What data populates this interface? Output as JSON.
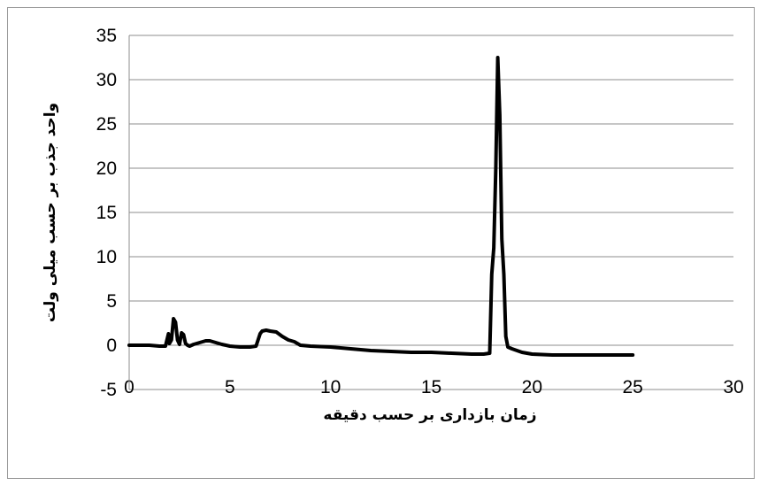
{
  "chart_data": {
    "type": "line",
    "title": "",
    "xlabel": "زمان بازداری بر حسب دقیقه",
    "ylabel": "واحد جذب بر حسب میلی ولت",
    "xlim": [
      0,
      30
    ],
    "ylim": [
      -5,
      35
    ],
    "x_ticks": [
      "0",
      "5",
      "10",
      "15",
      "20",
      "25",
      "30"
    ],
    "y_ticks": [
      "-5",
      "0",
      "5",
      "10",
      "15",
      "20",
      "25",
      "30",
      "35"
    ],
    "grid": "horizontal",
    "legend": "none",
    "series": [
      {
        "color": "#000000",
        "x": [
          0,
          0.5,
          1,
          1.5,
          1.8,
          1.95,
          2.0,
          2.1,
          2.2,
          2.3,
          2.4,
          2.5,
          2.6,
          2.7,
          2.8,
          2.9,
          3.0,
          3.2,
          3.5,
          3.8,
          4.0,
          4.3,
          4.6,
          5.0,
          5.5,
          6.0,
          6.3,
          6.5,
          6.6,
          6.8,
          7.0,
          7.3,
          7.6,
          7.9,
          8.2,
          8.5,
          9.0,
          10.0,
          11.0,
          12.0,
          13.0,
          14.0,
          15.0,
          16.0,
          17.0,
          17.6,
          17.9,
          18.0,
          18.1,
          18.2,
          18.3,
          18.4,
          18.5,
          18.6,
          18.7,
          18.8,
          18.9,
          19.0,
          19.5,
          20.0,
          21.0,
          22.0,
          23.0,
          24.0,
          25.0
        ],
        "y": [
          0,
          0,
          0,
          -0.1,
          -0.1,
          1.3,
          0.2,
          0.6,
          3.0,
          2.6,
          0.6,
          0.1,
          1.4,
          1.2,
          0.2,
          0.0,
          -0.1,
          0.1,
          0.3,
          0.5,
          0.5,
          0.3,
          0.1,
          -0.1,
          -0.2,
          -0.2,
          -0.1,
          1.3,
          1.6,
          1.7,
          1.6,
          1.5,
          1.0,
          0.6,
          0.4,
          0.0,
          -0.1,
          -0.2,
          -0.4,
          -0.6,
          -0.7,
          -0.8,
          -0.8,
          -0.9,
          -1.0,
          -1.0,
          -0.9,
          8.0,
          11.0,
          20.0,
          32.5,
          26.0,
          12.0,
          8.0,
          1.0,
          -0.2,
          -0.3,
          -0.4,
          -0.8,
          -1.0,
          -1.1,
          -1.1,
          -1.1,
          -1.1,
          -1.1
        ]
      }
    ]
  }
}
